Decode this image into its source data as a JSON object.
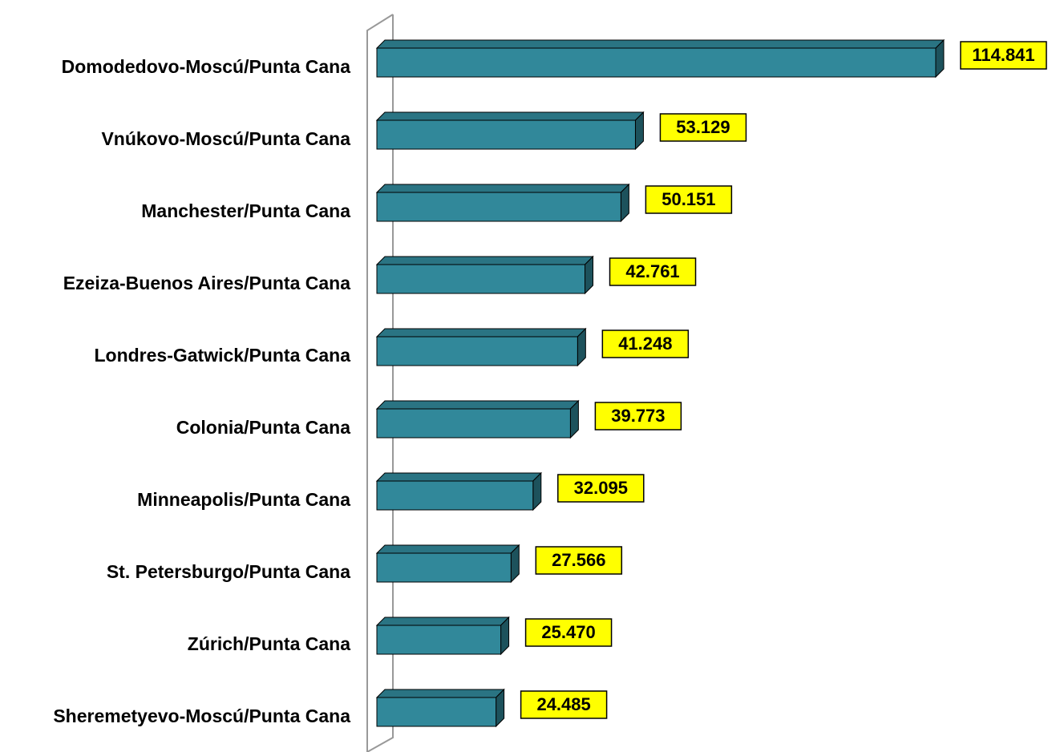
{
  "chart_data": {
    "type": "bar",
    "orientation": "horizontal",
    "categories": [
      "Domodedovo-Moscú/Punta Cana",
      "Vnúkovo-Moscú/Punta Cana",
      "Manchester/Punta Cana",
      "Ezeiza-Buenos Aires/Punta Cana",
      "Londres-Gatwick/Punta Cana",
      "Colonia/Punta Cana",
      "Minneapolis/Punta Cana",
      "St. Petersburgo/Punta Cana",
      "Zúrich/Punta Cana",
      "Sheremetyevo-Moscú/Punta Cana"
    ],
    "values": [
      114841,
      53129,
      50151,
      42761,
      41248,
      39773,
      32095,
      27566,
      25470,
      24485
    ],
    "value_labels": [
      "114.841",
      "53.129",
      "50.151",
      "42.761",
      "41.248",
      "39.773",
      "32.095",
      "27.566",
      "25.470",
      "24.485"
    ],
    "color": "#31889a",
    "label_color": "#ffff00"
  }
}
